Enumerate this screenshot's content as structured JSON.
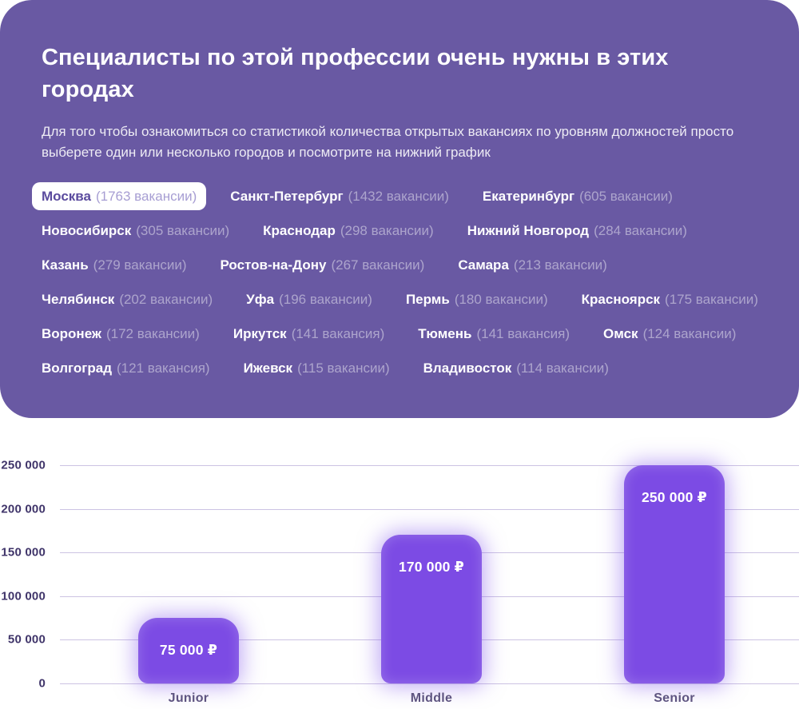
{
  "card": {
    "title": "Специалисты по этой профессии очень нужны в этих городах",
    "subtitle": "Для того чтобы ознакомиться со статистикой количества открытых вакансиях по уровням должностей просто выберете один или несколько городов и посмотрите на нижний график",
    "background_color": "#6959A3",
    "selected_chip_background": "#ffffff",
    "cities": [
      {
        "name": "Москва",
        "count": "(1763 вакансии)",
        "selected": true
      },
      {
        "name": "Санкт-Петербург",
        "count": "(1432 вакансии)",
        "selected": false
      },
      {
        "name": "Екатеринбург",
        "count": "(605 вакансии)",
        "selected": false
      },
      {
        "name": "Новосибирск",
        "count": "(305 вакансии)",
        "selected": false
      },
      {
        "name": "Краснодар",
        "count": "(298 вакансии)",
        "selected": false
      },
      {
        "name": "Нижний Новгород",
        "count": "(284 вакансии)",
        "selected": false
      },
      {
        "name": "Казань",
        "count": "(279 вакансии)",
        "selected": false
      },
      {
        "name": "Ростов-на-Дону",
        "count": "(267 вакансии)",
        "selected": false
      },
      {
        "name": "Самара",
        "count": "(213 вакансии)",
        "selected": false
      },
      {
        "name": "Челябинск",
        "count": "(202 вакансии)",
        "selected": false
      },
      {
        "name": "Уфа",
        "count": "(196 вакансии)",
        "selected": false
      },
      {
        "name": "Пермь",
        "count": "(180 вакансии)",
        "selected": false
      },
      {
        "name": "Красноярск",
        "count": "(175 вакансии)",
        "selected": false
      },
      {
        "name": "Воронеж",
        "count": "(172 вакансии)",
        "selected": false
      },
      {
        "name": "Иркутск",
        "count": "(141 вакансия)",
        "selected": false
      },
      {
        "name": "Тюмень",
        "count": "(141 вакансия)",
        "selected": false
      },
      {
        "name": "Омск",
        "count": "(124 вакансии)",
        "selected": false
      },
      {
        "name": "Волгоград",
        "count": "(121 вакансия)",
        "selected": false
      },
      {
        "name": "Ижевск",
        "count": "(115 вакансии)",
        "selected": false
      },
      {
        "name": "Владивосток",
        "count": "(114 вакансии)",
        "selected": false
      }
    ]
  },
  "chart_data": {
    "type": "bar",
    "categories": [
      "Junior",
      "Middle",
      "Senior"
    ],
    "values": [
      75000,
      170000,
      250000
    ],
    "value_labels": [
      "75 000 ₽",
      "170 000 ₽",
      "250 000 ₽"
    ],
    "ytick_labels": [
      "0",
      "50 000",
      "100 000",
      "150 000",
      "200 000",
      "250 000"
    ],
    "ylim": [
      0,
      250000
    ],
    "grid": true,
    "legend": false,
    "title": "",
    "xlabel": "",
    "ylabel": "",
    "bar_color": "#7C4BE4",
    "gridline_color": "#CCC3E3",
    "ytick_color": "#40356A"
  }
}
